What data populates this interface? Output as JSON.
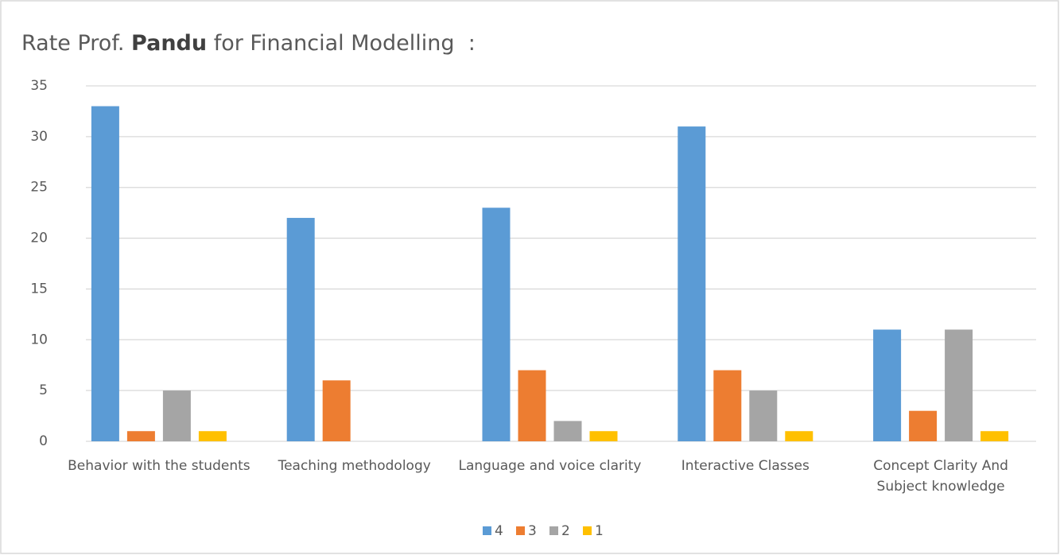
{
  "chart_data": {
    "type": "bar",
    "title": [
      "Rate Prof. ",
      "Pandu",
      " for Financial Modelling  :"
    ],
    "categories": [
      "Behavior with the students",
      "Teaching methodology",
      "Language and voice clarity",
      "Interactive Classes",
      "Concept Clarity And Subject knowledge"
    ],
    "series": [
      {
        "name": "4",
        "color": "#5b9bd5",
        "values": [
          33,
          22,
          23,
          31,
          11
        ]
      },
      {
        "name": "3",
        "color": "#ed7d31",
        "values": [
          1,
          6,
          7,
          7,
          3
        ]
      },
      {
        "name": "2",
        "color": "#a5a5a5",
        "values": [
          5,
          0,
          2,
          5,
          11
        ]
      },
      {
        "name": "1",
        "color": "#ffc000",
        "values": [
          1,
          0,
          1,
          1,
          1
        ]
      }
    ],
    "ylim": [
      0,
      35
    ],
    "yticks": [
      0,
      5,
      10,
      15,
      20,
      25,
      30,
      35
    ],
    "grid": true,
    "legend": "bottom"
  }
}
